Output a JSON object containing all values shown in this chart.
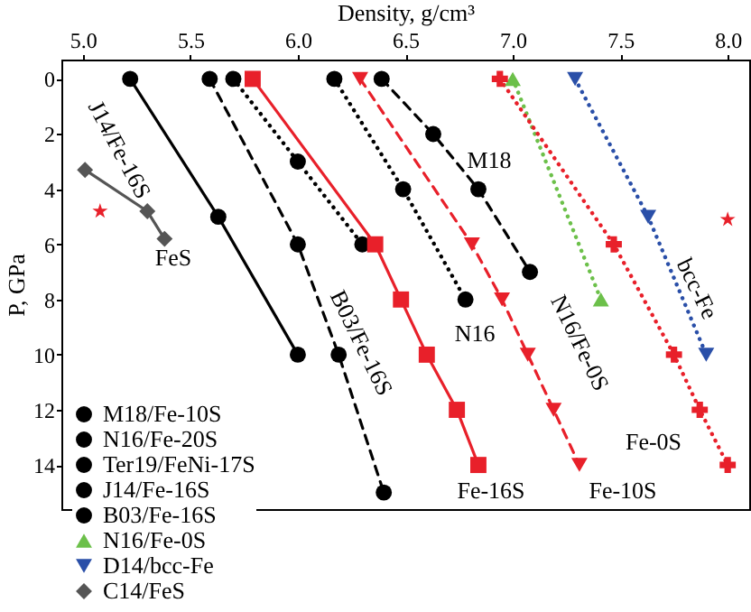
{
  "chart_data": {
    "type": "line",
    "xlabel": "Density, g/cm³",
    "ylabel": "P, GPa",
    "xlim": [
      4.9,
      8.1
    ],
    "ylim": [
      15.6,
      -0.7
    ],
    "xticks": [
      {
        "value": 5,
        "label": "5.0"
      },
      5.5,
      {
        "value": 6,
        "label": "6.0"
      },
      6.5,
      {
        "value": 7,
        "label": "7.0"
      },
      7.5,
      {
        "value": 8,
        "label": "8.0"
      }
    ],
    "yticks": [
      0,
      2,
      4,
      6,
      8,
      10,
      12,
      14
    ],
    "grid": false,
    "legend": "bottom left",
    "series": [
      {
        "name": "M18/Fe-10S",
        "color": "#000000",
        "marker": "circle",
        "line_style": "dashed",
        "x": [
          6.39,
          6.63,
          6.84,
          7.08
        ],
        "values": [
          0,
          2,
          4,
          7
        ]
      },
      {
        "name": "N16/Fe-20S",
        "color": "#000000",
        "marker": "circle",
        "line_style": "dotted",
        "x": [
          6.17,
          6.49,
          6.78
        ],
        "values": [
          0,
          4,
          8
        ]
      },
      {
        "name": "Ter19/FeNi-17S",
        "color": "#000000",
        "marker": "circle",
        "line_style": "dotted",
        "x": [
          5.7,
          6.0,
          6.3
        ],
        "values": [
          0,
          3,
          6
        ]
      },
      {
        "name": "J14/Fe-16S",
        "color": "#000000",
        "marker": "circle",
        "line_style": "solid",
        "x": [
          5.22,
          5.63,
          6.0
        ],
        "values": [
          0,
          5,
          10
        ]
      },
      {
        "name": "B03/Fe-16S",
        "color": "#000000",
        "marker": "circle",
        "line_style": "dashed",
        "x": [
          5.59,
          6.0,
          6.19,
          6.4
        ],
        "values": [
          0,
          6,
          10,
          15
        ]
      },
      {
        "name": "N16/Fe-0S",
        "color": "#6cc04a",
        "marker": "triangle",
        "line_style": "dotted",
        "x": [
          7.0,
          7.41
        ],
        "values": [
          0,
          8
        ]
      },
      {
        "name": "D14/bcc-Fe",
        "color": "#2a4fa8",
        "marker": "triangle-down",
        "line_style": "dotted",
        "x": [
          7.29,
          7.63,
          7.9
        ],
        "values": [
          0,
          5,
          10
        ]
      },
      {
        "name": "C14/FeS",
        "color": "#555555",
        "marker": "diamond",
        "line_style": "solid",
        "x": [
          5.01,
          5.3,
          5.38
        ],
        "values": [
          3.3,
          4.8,
          5.8
        ]
      },
      {
        "color": "#e8202a",
        "marker": "square",
        "line_style": "solid",
        "x": [
          5.79,
          6.36,
          6.48,
          6.6,
          6.74,
          6.84
        ],
        "values": [
          0,
          6,
          8,
          10,
          12,
          14
        ]
      },
      {
        "color": "#e8202a",
        "marker": "triangle-down",
        "line_style": "dashed",
        "x": [
          6.29,
          6.81,
          6.95,
          7.07,
          7.19,
          7.31
        ],
        "values": [
          0,
          6,
          8,
          10,
          12,
          14
        ]
      },
      {
        "color": "#e8202a",
        "marker": "cross",
        "line_style": "dotted",
        "x": [
          6.94,
          7.47,
          7.75,
          7.87,
          8.0
        ],
        "values": [
          0,
          6,
          10,
          12,
          14
        ]
      },
      {
        "type": "scatter",
        "color": "#e8202a",
        "marker": "star",
        "x": [
          5.08,
          8.0
        ],
        "values": [
          4.8,
          5.1
        ]
      }
    ],
    "annotations": [
      "J14/Fe-16S",
      "M18",
      "FeS",
      "B03/Fe-16S",
      "N16",
      "N16/Fe-0S",
      "bcc-Fe",
      "Fe-0S",
      "Fe-16S",
      "Fe-10S"
    ]
  }
}
